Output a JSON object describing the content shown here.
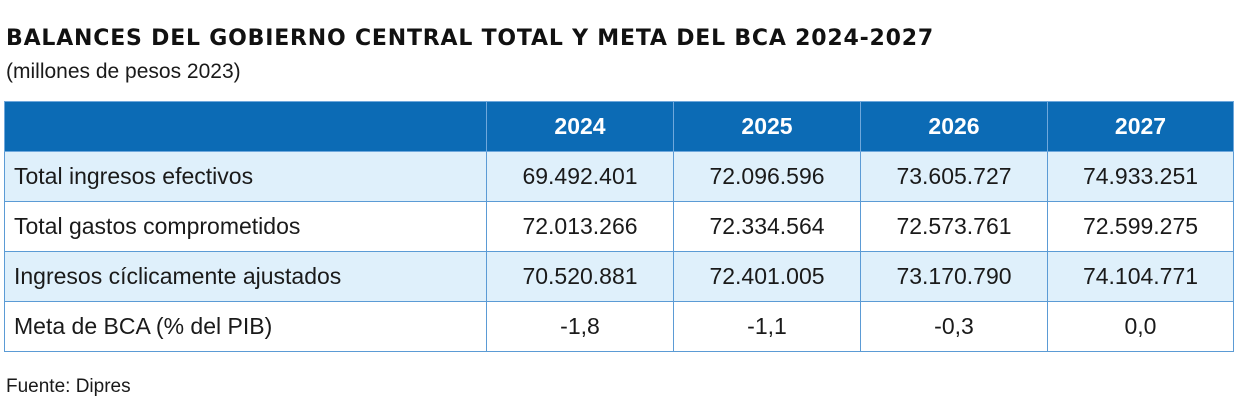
{
  "title": "BALANCES DEL GOBIERNO CENTRAL TOTAL Y META DEL BCA 2024-2027",
  "subtitle": "(millones de pesos 2023)",
  "table": {
    "header_color": "#0c6bb5",
    "alt_row_color": "#dff0fb",
    "columns": [
      "",
      "2024",
      "2025",
      "2026",
      "2027"
    ],
    "rows": [
      {
        "label": "Total ingresos efectivos",
        "values": [
          "69.492.401",
          "72.096.596",
          "73.605.727",
          "74.933.251"
        ]
      },
      {
        "label": "Total gastos comprometidos",
        "values": [
          "72.013.266",
          "72.334.564",
          "72.573.761",
          "72.599.275"
        ]
      },
      {
        "label": "Ingresos cíclicamente ajustados",
        "values": [
          "70.520.881",
          "72.401.005",
          "73.170.790",
          "74.104.771"
        ]
      },
      {
        "label": "Meta de BCA (% del PIB)",
        "values": [
          "-1,8",
          "-1,1",
          "-0,3",
          "0,0"
        ]
      }
    ]
  },
  "source": "Fuente: Dipres"
}
